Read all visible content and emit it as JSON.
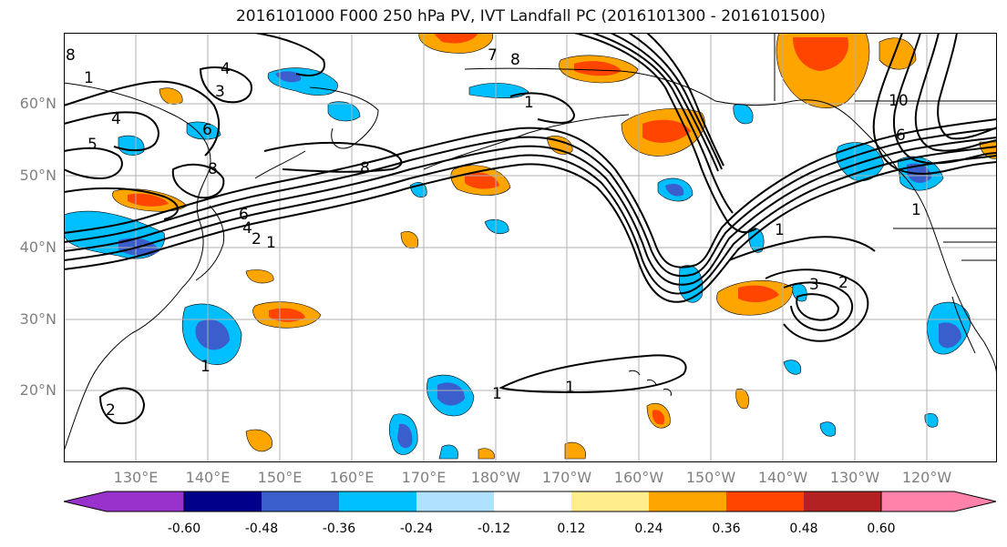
{
  "title": "2016101000 F000 250 hPa PV, IVT Landfall PC (2016101300 - 2016101500)",
  "lat_labels": [
    "60°N",
    "50°N",
    "40°N",
    "30°N",
    "20°N"
  ],
  "lon_labels": [
    "130°E",
    "140°E",
    "150°E",
    "160°E",
    "170°E",
    "180°W",
    "170°W",
    "160°W",
    "150°W",
    "140°W",
    "130°W",
    "120°W"
  ],
  "contour_labels": [
    "8",
    "7",
    "8",
    "1",
    "4",
    "3",
    "4",
    "5",
    "6",
    "8",
    "8",
    "6",
    "4",
    "2",
    "1",
    "1",
    "1",
    "1",
    "1",
    "1",
    "2",
    "3",
    "2",
    "1",
    "6",
    "10"
  ],
  "colorbar": {
    "ticks": [
      "-0.60",
      "-0.48",
      "-0.36",
      "-0.24",
      "-0.12",
      "0.12",
      "0.24",
      "0.36",
      "0.48",
      "0.60"
    ],
    "colors": [
      "#9932cc",
      "#00008b",
      "#3a5fcd",
      "#00bfff",
      "#b0e2ff",
      "#ffffff",
      "#ffec8b",
      "#ffa500",
      "#ff4500",
      "#b22222",
      "#ff82ab"
    ]
  },
  "colors": {
    "neg_dark": "#3a5fcd",
    "neg_mid": "#00bfff",
    "neg_light": "#b0e2ff",
    "pos_light": "#ffec8b",
    "pos_mid": "#ffa500",
    "pos_dark": "#ff4500",
    "grid": "#b0b0b0",
    "contour": "#000000"
  }
}
